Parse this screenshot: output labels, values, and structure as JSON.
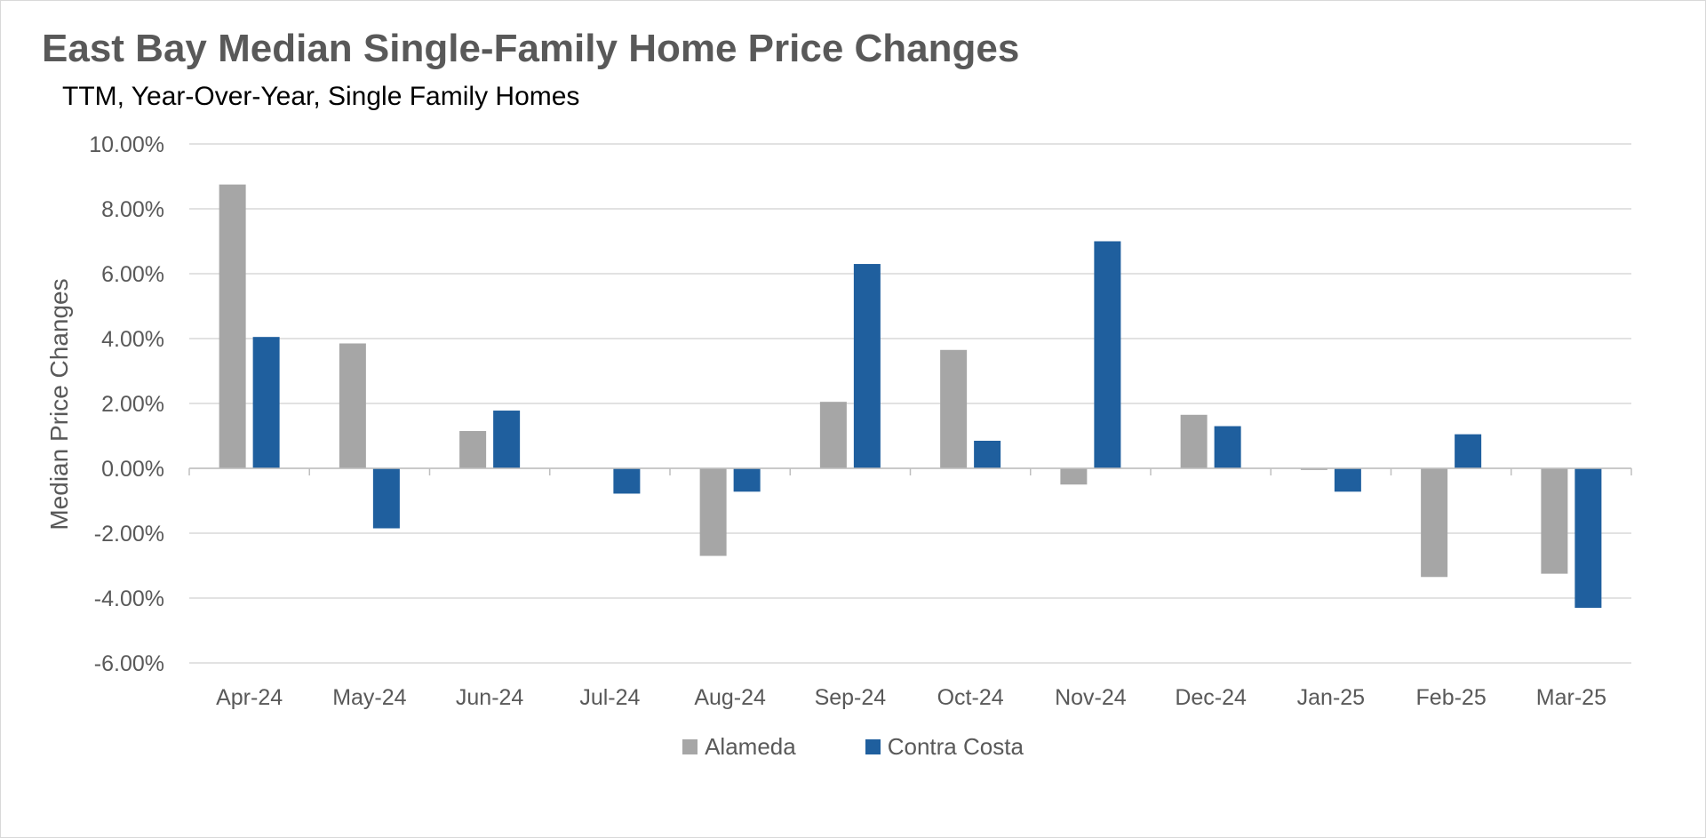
{
  "chart_data": {
    "type": "bar",
    "title": "East Bay Median Single-Family Home Price Changes",
    "subtitle": "TTM, Year-Over-Year,  Single Family Homes",
    "xlabel": "",
    "ylabel": "Median Price Changes",
    "categories": [
      "Apr-24",
      "May-24",
      "Jun-24",
      "Jul-24",
      "Aug-24",
      "Sep-24",
      "Oct-24",
      "Nov-24",
      "Dec-24",
      "Jan-25",
      "Feb-25",
      "Mar-25"
    ],
    "series": [
      {
        "name": "Alameda",
        "color": "#a6a6a6",
        "values": [
          8.75,
          3.85,
          1.15,
          0.0,
          -2.7,
          2.05,
          3.65,
          -0.5,
          1.65,
          -0.05,
          -3.35,
          -3.25
        ]
      },
      {
        "name": "Contra Costa",
        "color": "#1f5f9e",
        "values": [
          4.05,
          -1.85,
          1.78,
          -0.78,
          -0.72,
          6.3,
          0.85,
          7.0,
          1.3,
          -0.72,
          1.05,
          -4.3
        ]
      }
    ],
    "ylim": [
      -6,
      10
    ],
    "yticks": [
      10,
      8,
      6,
      4,
      2,
      0,
      -2,
      -4,
      -6
    ],
    "ytick_labels": [
      "10.00%",
      "8.00%",
      "6.00%",
      "4.00%",
      "2.00%",
      "0.00%",
      "-2.00%",
      "-4.00%",
      "-6.00%"
    ],
    "grid": true,
    "legend_position": "bottom"
  }
}
